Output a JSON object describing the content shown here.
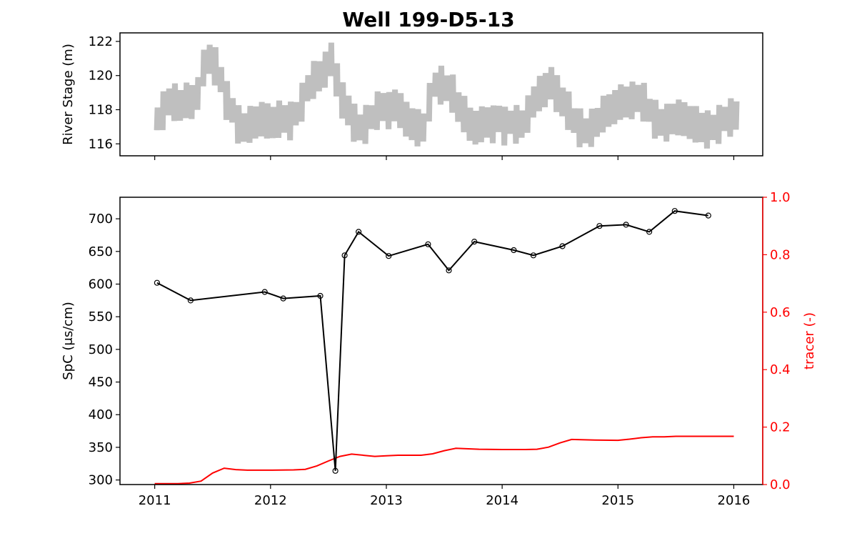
{
  "title": "Well 199-D5-13",
  "colors": {
    "spc": "#000000",
    "tracer": "#ff0000",
    "stage": "#bfbfbf",
    "axes": "#000000"
  },
  "chart_data": [
    {
      "type": "line",
      "panel": "top",
      "xlabel": "",
      "ylabel": "River Stage (m)",
      "xlim": [
        2010.7,
        2016.25
      ],
      "ylim": [
        115.3,
        122.5
      ],
      "yticks": [
        116,
        118,
        120,
        122
      ],
      "xticks": [
        2011,
        2012,
        2013,
        2014,
        2015,
        2016
      ],
      "x_tick_labels_shown": false,
      "series": [
        {
          "color": "#bfbfbf",
          "x": [
            2011.0,
            2011.05,
            2011.1,
            2011.15,
            2011.2,
            2011.25,
            2011.3,
            2011.35,
            2011.4,
            2011.45,
            2011.5,
            2011.55,
            2011.6,
            2011.65,
            2011.7,
            2011.75,
            2011.8,
            2011.85,
            2011.9,
            2011.95,
            2012.0,
            2012.05,
            2012.1,
            2012.15,
            2012.2,
            2012.25,
            2012.3,
            2012.35,
            2012.4,
            2012.45,
            2012.5,
            2012.55,
            2012.6,
            2012.65,
            2012.7,
            2012.75,
            2012.8,
            2012.85,
            2012.9,
            2012.95,
            2013.0,
            2013.05,
            2013.1,
            2013.15,
            2013.2,
            2013.25,
            2013.3,
            2013.35,
            2013.4,
            2013.45,
            2013.5,
            2013.55,
            2013.6,
            2013.65,
            2013.7,
            2013.75,
            2013.8,
            2013.85,
            2013.9,
            2013.95,
            2014.0,
            2014.05,
            2014.1,
            2014.15,
            2014.2,
            2014.25,
            2014.3,
            2014.35,
            2014.4,
            2014.45,
            2014.5,
            2014.55,
            2014.6,
            2014.65,
            2014.7,
            2014.75,
            2014.8,
            2014.85,
            2014.9,
            2014.95,
            2015.0,
            2015.05,
            2015.1,
            2015.15,
            2015.2,
            2015.25,
            2015.3,
            2015.35,
            2015.4,
            2015.45,
            2015.5,
            2015.55,
            2015.6,
            2015.65,
            2015.7,
            2015.75,
            2015.8,
            2015.85,
            2015.9,
            2015.95,
            2016.0
          ],
          "y": [
            117.5,
            118.0,
            118.5,
            118.5,
            118.3,
            118.6,
            118.5,
            119.0,
            120.5,
            121.0,
            120.6,
            119.8,
            118.6,
            118.0,
            117.2,
            117.0,
            117.2,
            117.3,
            117.5,
            117.4,
            117.3,
            117.5,
            117.5,
            117.4,
            117.8,
            118.5,
            119.3,
            119.8,
            120.0,
            120.4,
            121.0,
            119.8,
            118.6,
            118.0,
            117.3,
            117.0,
            117.2,
            117.6,
            118.0,
            118.2,
            118.0,
            118.3,
            118.0,
            117.5,
            117.2,
            117.0,
            117.0,
            118.5,
            119.5,
            119.5,
            119.3,
            119.0,
            118.2,
            117.8,
            117.2,
            117.0,
            117.2,
            117.3,
            117.2,
            117.5,
            117.1,
            117.3,
            117.2,
            117.2,
            117.8,
            118.5,
            119.0,
            119.2,
            119.6,
            119.0,
            118.5,
            118.0,
            117.4,
            117.0,
            116.8,
            117.0,
            117.3,
            117.8,
            118.0,
            118.2,
            118.5,
            118.5,
            118.6,
            118.7,
            118.5,
            118.0,
            117.5,
            117.3,
            117.3,
            117.5,
            117.6,
            117.5,
            117.3,
            117.2,
            117.0,
            116.9,
            117.0,
            117.2,
            117.5,
            117.6,
            117.7
          ]
        }
      ]
    },
    {
      "type": "line",
      "panel": "bottom",
      "xlabel": "",
      "ylabel": "SpC (μs/cm)",
      "y2label": "tracer (-)",
      "xlim": [
        2010.7,
        2016.25
      ],
      "xticks": [
        2011,
        2012,
        2013,
        2014,
        2015,
        2016
      ],
      "ylim": [
        293,
        733
      ],
      "yticks": [
        300,
        350,
        400,
        450,
        500,
        550,
        600,
        650,
        700
      ],
      "y2lim": [
        0.0,
        1.0
      ],
      "y2ticks": [
        "0.0",
        "0.2",
        "0.4",
        "0.6",
        "0.8",
        "1.0"
      ],
      "series": [
        {
          "color": "#000000",
          "markers": true,
          "x": [
            2011.02,
            2011.31,
            2011.95,
            2012.11,
            2012.43,
            2012.56,
            2012.64,
            2012.76,
            2013.02,
            2013.36,
            2013.54,
            2013.76,
            2014.1,
            2014.27,
            2014.52,
            2014.84,
            2015.07,
            2015.27,
            2015.49,
            2015.78
          ],
          "y": [
            602,
            575,
            588,
            578,
            582,
            314,
            644,
            680,
            643,
            661,
            621,
            665,
            652,
            644,
            658,
            689,
            691,
            680,
            712,
            705
          ]
        },
        {
          "color": "#ff0000",
          "axis": "right",
          "x": [
            2011.0,
            2011.2,
            2011.3,
            2011.4,
            2011.5,
            2011.6,
            2011.7,
            2011.8,
            2012.0,
            2012.2,
            2012.3,
            2012.4,
            2012.5,
            2012.6,
            2012.7,
            2012.9,
            2013.0,
            2013.1,
            2013.3,
            2013.4,
            2013.5,
            2013.6,
            2013.8,
            2014.0,
            2014.2,
            2014.3,
            2014.4,
            2014.5,
            2014.6,
            2014.8,
            2015.0,
            2015.1,
            2015.2,
            2015.3,
            2015.4,
            2015.5,
            2015.6,
            2015.8,
            2016.0
          ],
          "y": [
            0.003,
            0.003,
            0.005,
            0.012,
            0.04,
            0.057,
            0.052,
            0.05,
            0.05,
            0.051,
            0.053,
            0.065,
            0.082,
            0.098,
            0.106,
            0.098,
            0.1,
            0.102,
            0.102,
            0.107,
            0.118,
            0.126,
            0.123,
            0.122,
            0.122,
            0.123,
            0.13,
            0.145,
            0.157,
            0.155,
            0.154,
            0.158,
            0.163,
            0.166,
            0.166,
            0.168,
            0.168,
            0.168,
            0.168
          ]
        }
      ]
    }
  ]
}
